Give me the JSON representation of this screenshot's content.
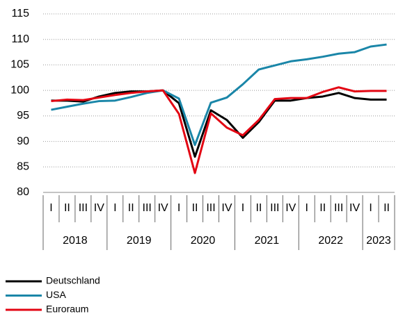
{
  "chart_data": {
    "type": "line",
    "categories": [
      "I",
      "II",
      "III",
      "IV",
      "I",
      "II",
      "III",
      "IV",
      "I",
      "II",
      "III",
      "IV",
      "I",
      "II",
      "III",
      "IV",
      "I",
      "II",
      "III",
      "IV",
      "I",
      "II"
    ],
    "groups": [
      {
        "label": "2018",
        "count": 4
      },
      {
        "label": "2019",
        "count": 4
      },
      {
        "label": "2020",
        "count": 4
      },
      {
        "label": "2021",
        "count": 4
      },
      {
        "label": "2022",
        "count": 4
      },
      {
        "label": "2023",
        "count": 2
      }
    ],
    "series": [
      {
        "name": "Deutschland",
        "color": "#000000",
        "values": [
          98,
          98,
          97.8,
          98.8,
          99.5,
          99.8,
          99.8,
          100,
          97.5,
          87,
          96.1,
          94.2,
          90.7,
          93.8,
          98,
          98,
          98.5,
          98.8,
          99.5,
          98.5,
          98.2,
          98.2
        ]
      },
      {
        "name": "USA",
        "color": "#1a86a8",
        "values": [
          96.2,
          96.8,
          97.4,
          97.9,
          98,
          98.7,
          99.5,
          100,
          98.4,
          89.3,
          97.6,
          98.6,
          101.2,
          104.1,
          104.9,
          105.7,
          106.1,
          106.6,
          107.2,
          107.5,
          108.6,
          109
        ]
      },
      {
        "name": "Euroraum",
        "color": "#e30613",
        "values": [
          97.9,
          98.2,
          98.1,
          98.6,
          99.1,
          99.5,
          99.8,
          100,
          95.4,
          83.8,
          95.5,
          92.7,
          91.2,
          94.2,
          98.3,
          98.5,
          98.5,
          99.7,
          100.6,
          99.8,
          99.9,
          99.9
        ]
      }
    ],
    "ylim": [
      80,
      115
    ],
    "yticks": [
      80,
      85,
      90,
      95,
      100,
      105,
      110,
      115
    ],
    "grid": true,
    "legend": "bottom-left"
  }
}
